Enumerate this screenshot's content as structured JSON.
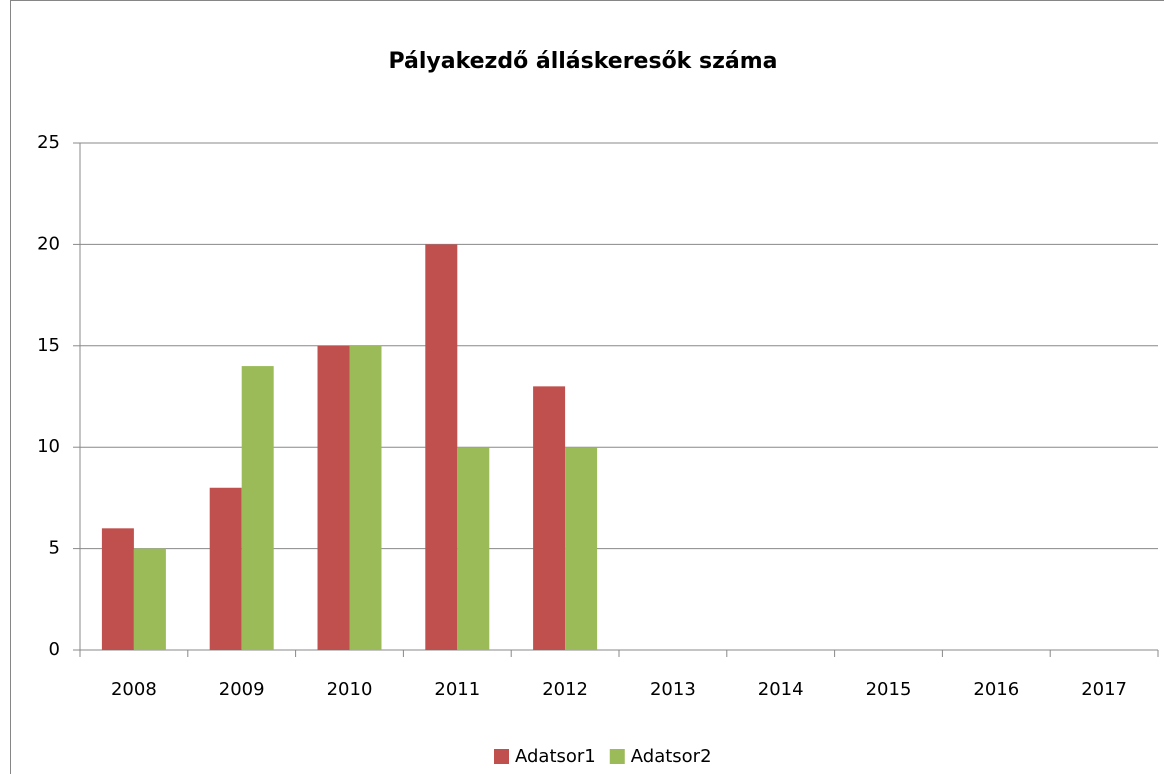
{
  "chart_data": {
    "type": "bar",
    "title": "Pályakezdő álláskeresők száma",
    "categories": [
      "2008",
      "2009",
      "2010",
      "2011",
      "2012",
      "2013",
      "2014",
      "2015",
      "2016",
      "2017"
    ],
    "series": [
      {
        "name": "Adatsor1",
        "color": "#c0504d",
        "values": [
          6,
          8,
          15,
          20,
          13,
          null,
          null,
          null,
          null,
          null
        ]
      },
      {
        "name": "Adatsor2",
        "color": "#9bbb59",
        "values": [
          5,
          14,
          15,
          10,
          10,
          null,
          null,
          null,
          null,
          null
        ]
      }
    ],
    "ylim": [
      0,
      25
    ],
    "yticks": [
      0,
      5,
      10,
      15,
      20,
      25
    ],
    "grid": true,
    "legend": "bottom"
  }
}
